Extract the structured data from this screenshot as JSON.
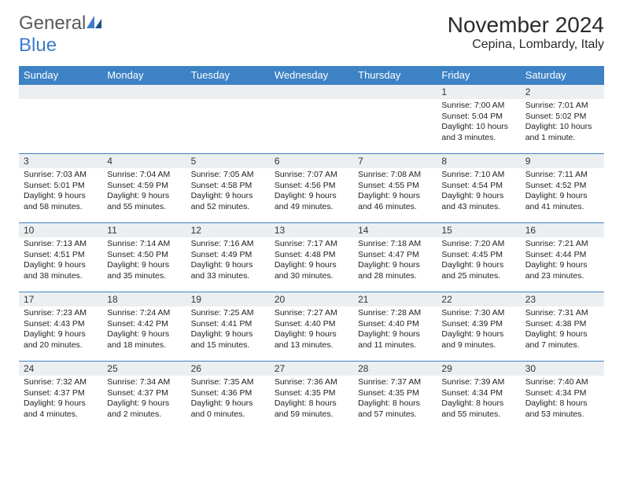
{
  "logo": {
    "text1": "General",
    "text2": "Blue"
  },
  "header": {
    "title": "November 2024",
    "location": "Cepina, Lombardy, Italy"
  },
  "colors": {
    "header_bg": "#3d82c4",
    "header_fg": "#ffffff",
    "daynum_bg": "#eceff1",
    "border": "#3d82c4",
    "logo_gray": "#5a5a5a",
    "logo_blue": "#3d7cc9"
  },
  "weekdays": [
    "Sunday",
    "Monday",
    "Tuesday",
    "Wednesday",
    "Thursday",
    "Friday",
    "Saturday"
  ],
  "weeks": [
    [
      null,
      null,
      null,
      null,
      null,
      {
        "n": "1",
        "sr": "7:00 AM",
        "ss": "5:04 PM",
        "dl": "10 hours and 3 minutes."
      },
      {
        "n": "2",
        "sr": "7:01 AM",
        "ss": "5:02 PM",
        "dl": "10 hours and 1 minute."
      }
    ],
    [
      {
        "n": "3",
        "sr": "7:03 AM",
        "ss": "5:01 PM",
        "dl": "9 hours and 58 minutes."
      },
      {
        "n": "4",
        "sr": "7:04 AM",
        "ss": "4:59 PM",
        "dl": "9 hours and 55 minutes."
      },
      {
        "n": "5",
        "sr": "7:05 AM",
        "ss": "4:58 PM",
        "dl": "9 hours and 52 minutes."
      },
      {
        "n": "6",
        "sr": "7:07 AM",
        "ss": "4:56 PM",
        "dl": "9 hours and 49 minutes."
      },
      {
        "n": "7",
        "sr": "7:08 AM",
        "ss": "4:55 PM",
        "dl": "9 hours and 46 minutes."
      },
      {
        "n": "8",
        "sr": "7:10 AM",
        "ss": "4:54 PM",
        "dl": "9 hours and 43 minutes."
      },
      {
        "n": "9",
        "sr": "7:11 AM",
        "ss": "4:52 PM",
        "dl": "9 hours and 41 minutes."
      }
    ],
    [
      {
        "n": "10",
        "sr": "7:13 AM",
        "ss": "4:51 PM",
        "dl": "9 hours and 38 minutes."
      },
      {
        "n": "11",
        "sr": "7:14 AM",
        "ss": "4:50 PM",
        "dl": "9 hours and 35 minutes."
      },
      {
        "n": "12",
        "sr": "7:16 AM",
        "ss": "4:49 PM",
        "dl": "9 hours and 33 minutes."
      },
      {
        "n": "13",
        "sr": "7:17 AM",
        "ss": "4:48 PM",
        "dl": "9 hours and 30 minutes."
      },
      {
        "n": "14",
        "sr": "7:18 AM",
        "ss": "4:47 PM",
        "dl": "9 hours and 28 minutes."
      },
      {
        "n": "15",
        "sr": "7:20 AM",
        "ss": "4:45 PM",
        "dl": "9 hours and 25 minutes."
      },
      {
        "n": "16",
        "sr": "7:21 AM",
        "ss": "4:44 PM",
        "dl": "9 hours and 23 minutes."
      }
    ],
    [
      {
        "n": "17",
        "sr": "7:23 AM",
        "ss": "4:43 PM",
        "dl": "9 hours and 20 minutes."
      },
      {
        "n": "18",
        "sr": "7:24 AM",
        "ss": "4:42 PM",
        "dl": "9 hours and 18 minutes."
      },
      {
        "n": "19",
        "sr": "7:25 AM",
        "ss": "4:41 PM",
        "dl": "9 hours and 15 minutes."
      },
      {
        "n": "20",
        "sr": "7:27 AM",
        "ss": "4:40 PM",
        "dl": "9 hours and 13 minutes."
      },
      {
        "n": "21",
        "sr": "7:28 AM",
        "ss": "4:40 PM",
        "dl": "9 hours and 11 minutes."
      },
      {
        "n": "22",
        "sr": "7:30 AM",
        "ss": "4:39 PM",
        "dl": "9 hours and 9 minutes."
      },
      {
        "n": "23",
        "sr": "7:31 AM",
        "ss": "4:38 PM",
        "dl": "9 hours and 7 minutes."
      }
    ],
    [
      {
        "n": "24",
        "sr": "7:32 AM",
        "ss": "4:37 PM",
        "dl": "9 hours and 4 minutes."
      },
      {
        "n": "25",
        "sr": "7:34 AM",
        "ss": "4:37 PM",
        "dl": "9 hours and 2 minutes."
      },
      {
        "n": "26",
        "sr": "7:35 AM",
        "ss": "4:36 PM",
        "dl": "9 hours and 0 minutes."
      },
      {
        "n": "27",
        "sr": "7:36 AM",
        "ss": "4:35 PM",
        "dl": "8 hours and 59 minutes."
      },
      {
        "n": "28",
        "sr": "7:37 AM",
        "ss": "4:35 PM",
        "dl": "8 hours and 57 minutes."
      },
      {
        "n": "29",
        "sr": "7:39 AM",
        "ss": "4:34 PM",
        "dl": "8 hours and 55 minutes."
      },
      {
        "n": "30",
        "sr": "7:40 AM",
        "ss": "4:34 PM",
        "dl": "8 hours and 53 minutes."
      }
    ]
  ],
  "labels": {
    "sunrise": "Sunrise:",
    "sunset": "Sunset:",
    "daylight": "Daylight:"
  }
}
